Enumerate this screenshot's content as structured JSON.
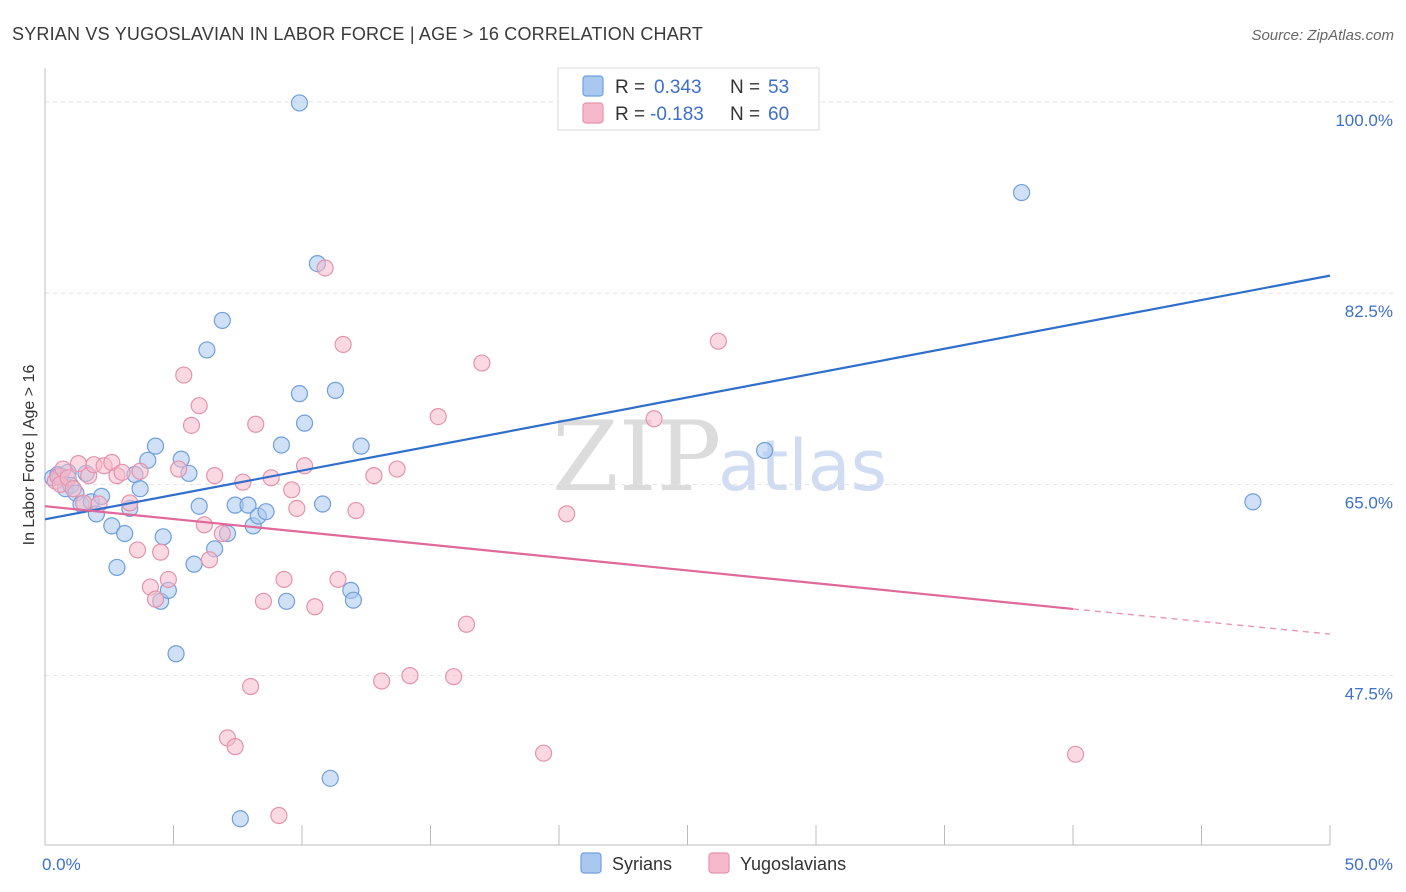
{
  "header": {
    "title": "SYRIAN VS YUGOSLAVIAN IN LABOR FORCE | AGE > 16 CORRELATION CHART",
    "source": "Source: ZipAtlas.com"
  },
  "watermark": {
    "zip": "ZIP",
    "atlas": "atlas"
  },
  "legend": {
    "rows": [
      {
        "r_label": "R = ",
        "r_value": "0.343",
        "n_label": "N = ",
        "n_value": "53"
      },
      {
        "r_label": "R = ",
        "r_value": "-0.183",
        "n_label": "N = ",
        "n_value": "60"
      }
    ]
  },
  "bottom_legend": {
    "syrians": "Syrians",
    "yugoslavians": "Yugoslavians"
  },
  "colors": {
    "syrian_fill": "#a9c8f0",
    "syrian_stroke": "#6f9fdc",
    "syrian_line": "#2f6fcb",
    "yugo_fill": "#f5b9cb",
    "yugo_stroke": "#e593ad",
    "yugo_line": "#e0689a",
    "tick_text": "#3d6fcc",
    "grid": "#e2e2e2"
  },
  "chart_data": {
    "type": "scatter",
    "title": "SYRIAN VS YUGOSLAVIAN IN LABOR FORCE | AGE > 16 CORRELATION CHART",
    "xlabel": "",
    "ylabel": "In Labor Force | Age > 16",
    "xlim": [
      0,
      50
    ],
    "ylim": [
      32,
      102
    ],
    "x_tick_labels": [
      {
        "value": 0,
        "label": "0.0%"
      },
      {
        "value": 50,
        "label": "50.0%"
      }
    ],
    "x_minor_ticks": [
      0,
      5,
      10,
      15,
      20,
      25,
      30,
      35,
      40,
      45,
      50
    ],
    "y_ticks": [
      {
        "value": 100,
        "label": "100.0%"
      },
      {
        "value": 82.5,
        "label": "82.5%"
      },
      {
        "value": 65,
        "label": "65.0%"
      },
      {
        "value": 47.5,
        "label": "47.5%"
      }
    ],
    "series": [
      {
        "name": "Syrians",
        "r": 0.343,
        "n": 53,
        "trend": {
          "x": [
            0,
            50
          ],
          "y": [
            61.8,
            84.1
          ]
        },
        "points": [
          [
            0.3,
            65.6
          ],
          [
            0.5,
            65.9
          ],
          [
            0.6,
            65.8
          ],
          [
            0.8,
            64.6
          ],
          [
            0.9,
            66.1
          ],
          [
            1.0,
            64.9
          ],
          [
            1.2,
            64.2
          ],
          [
            1.4,
            63.2
          ],
          [
            1.6,
            66.0
          ],
          [
            1.8,
            63.4
          ],
          [
            2.0,
            62.3
          ],
          [
            2.2,
            63.9
          ],
          [
            2.6,
            61.2
          ],
          [
            2.8,
            57.4
          ],
          [
            3.1,
            60.5
          ],
          [
            3.3,
            62.8
          ],
          [
            3.5,
            65.9
          ],
          [
            3.7,
            64.6
          ],
          [
            4.0,
            67.2
          ],
          [
            4.3,
            68.5
          ],
          [
            4.5,
            54.3
          ],
          [
            4.6,
            60.2
          ],
          [
            4.8,
            55.3
          ],
          [
            5.1,
            49.5
          ],
          [
            5.3,
            67.3
          ],
          [
            5.6,
            66.0
          ],
          [
            5.8,
            57.7
          ],
          [
            6.0,
            63.0
          ],
          [
            6.3,
            77.3
          ],
          [
            6.6,
            59.1
          ],
          [
            6.9,
            80.0
          ],
          [
            7.1,
            60.5
          ],
          [
            7.4,
            63.1
          ],
          [
            7.6,
            34.4
          ],
          [
            7.9,
            63.1
          ],
          [
            8.1,
            61.2
          ],
          [
            8.3,
            62.1
          ],
          [
            8.6,
            62.5
          ],
          [
            9.2,
            68.6
          ],
          [
            9.4,
            54.3
          ],
          [
            9.9,
            99.9
          ],
          [
            9.9,
            73.3
          ],
          [
            10.1,
            70.6
          ],
          [
            10.6,
            85.2
          ],
          [
            10.8,
            63.2
          ],
          [
            11.1,
            38.1
          ],
          [
            11.3,
            73.6
          ],
          [
            11.9,
            55.3
          ],
          [
            12.0,
            54.4
          ],
          [
            12.3,
            68.5
          ],
          [
            28.0,
            68.1
          ],
          [
            38.0,
            91.7
          ],
          [
            47.0,
            63.4
          ]
        ]
      },
      {
        "name": "Yugoslavians",
        "r": -0.183,
        "n": 60,
        "trend": {
          "x": [
            0,
            40
          ],
          "y": [
            63.0,
            53.6
          ]
        },
        "trend_dashed": {
          "x": [
            40,
            50
          ],
          "y": [
            53.6,
            51.3
          ]
        },
        "points": [
          [
            0.4,
            65.3
          ],
          [
            0.5,
            65.7
          ],
          [
            0.6,
            65.0
          ],
          [
            0.7,
            66.4
          ],
          [
            0.9,
            65.6
          ],
          [
            1.1,
            64.6
          ],
          [
            1.3,
            66.9
          ],
          [
            1.5,
            63.3
          ],
          [
            1.7,
            65.8
          ],
          [
            1.9,
            66.8
          ],
          [
            2.1,
            63.2
          ],
          [
            2.3,
            66.7
          ],
          [
            2.6,
            67.0
          ],
          [
            2.8,
            65.8
          ],
          [
            3.0,
            66.1
          ],
          [
            3.3,
            63.3
          ],
          [
            3.6,
            59.0
          ],
          [
            3.7,
            66.2
          ],
          [
            4.1,
            55.6
          ],
          [
            4.3,
            54.5
          ],
          [
            4.5,
            58.8
          ],
          [
            4.8,
            56.3
          ],
          [
            5.2,
            66.4
          ],
          [
            5.4,
            75.0
          ],
          [
            5.7,
            70.4
          ],
          [
            6.0,
            72.2
          ],
          [
            6.2,
            61.3
          ],
          [
            6.4,
            58.1
          ],
          [
            6.6,
            65.8
          ],
          [
            6.9,
            60.5
          ],
          [
            7.1,
            41.8
          ],
          [
            7.4,
            41.0
          ],
          [
            7.7,
            65.2
          ],
          [
            8.0,
            46.5
          ],
          [
            8.2,
            70.5
          ],
          [
            8.5,
            54.3
          ],
          [
            8.8,
            65.6
          ],
          [
            9.1,
            34.7
          ],
          [
            9.3,
            56.3
          ],
          [
            9.6,
            64.5
          ],
          [
            9.8,
            62.8
          ],
          [
            10.1,
            66.7
          ],
          [
            10.5,
            53.8
          ],
          [
            10.9,
            84.8
          ],
          [
            11.4,
            56.3
          ],
          [
            11.6,
            77.8
          ],
          [
            12.1,
            62.6
          ],
          [
            12.8,
            65.8
          ],
          [
            13.1,
            47.0
          ],
          [
            13.7,
            66.4
          ],
          [
            14.2,
            47.5
          ],
          [
            15.3,
            71.2
          ],
          [
            15.9,
            47.4
          ],
          [
            16.4,
            52.2
          ],
          [
            17.0,
            76.1
          ],
          [
            19.4,
            40.4
          ],
          [
            20.3,
            62.3
          ],
          [
            23.7,
            71.0
          ],
          [
            26.2,
            78.1
          ],
          [
            40.1,
            40.3
          ]
        ]
      }
    ]
  }
}
